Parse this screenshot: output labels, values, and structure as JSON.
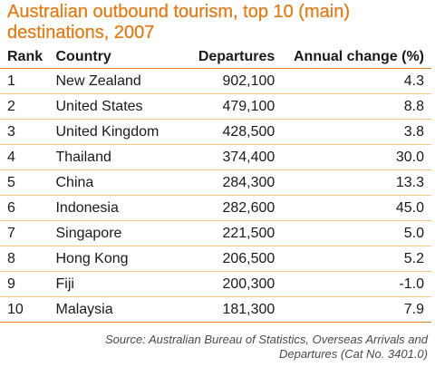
{
  "title": "Australian outbound tourism, top 10 (main) destinations, 2007",
  "columns": {
    "rank": "Rank",
    "country": "Country",
    "departures": "Departures",
    "change": "Annual change (%)"
  },
  "rows": [
    {
      "rank": "1",
      "country": "New Zealand",
      "departures": "902,100",
      "change": "4.3"
    },
    {
      "rank": "2",
      "country": "United States",
      "departures": "479,100",
      "change": "8.8"
    },
    {
      "rank": "3",
      "country": "United Kingdom",
      "departures": "428,500",
      "change": "3.8"
    },
    {
      "rank": "4",
      "country": "Thailand",
      "departures": "374,400",
      "change": "30.0"
    },
    {
      "rank": "5",
      "country": "China",
      "departures": "284,300",
      "change": "13.3"
    },
    {
      "rank": "6",
      "country": "Indonesia",
      "departures": "282,600",
      "change": "45.0"
    },
    {
      "rank": "7",
      "country": "Singapore",
      "departures": "221,500",
      "change": "5.0"
    },
    {
      "rank": "8",
      "country": "Hong Kong",
      "departures": "206,500",
      "change": "5.2"
    },
    {
      "rank": "9",
      "country": "Fiji",
      "departures": "200,300",
      "change": "-1.0"
    },
    {
      "rank": "10",
      "country": "Malaysia",
      "departures": "181,300",
      "change": "7.9"
    }
  ],
  "source_line1": "Source: Australian Bureau of Statistics, Overseas Arrivals and",
  "source_line2": "Departures (Cat No. 3401.0)",
  "colors": {
    "accent": "#e07d1c",
    "rule_light": "#f1c48c",
    "text": "#1a1a1a"
  }
}
